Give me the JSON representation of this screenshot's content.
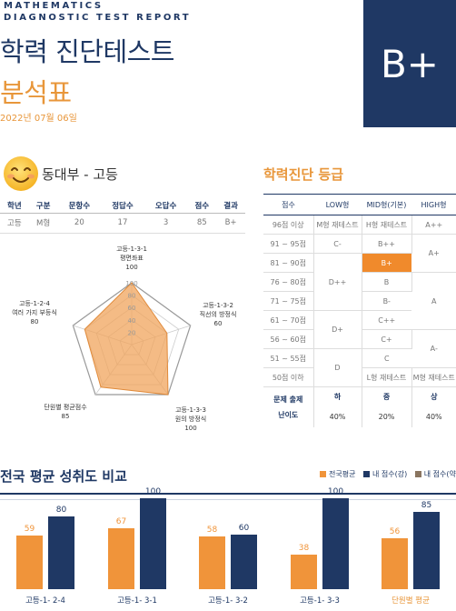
{
  "header": {
    "english_title_line1": "MATHEMATICS",
    "english_title_line2": "DIAGNOSTIC TEST REPORT",
    "title_line1": "학력 진단테스트",
    "title_line2": "분석표",
    "date": "2022년 07월 06일",
    "grade": "B+"
  },
  "student": {
    "emoji": "smiling-face",
    "name": "동대부 - 고등"
  },
  "info_table": {
    "headers": [
      "학년",
      "구분",
      "문항수",
      "정답수",
      "오답수",
      "점수",
      "결과"
    ],
    "row": [
      "고등",
      "M형",
      "20",
      "17",
      "3",
      "85",
      "B+"
    ]
  },
  "radar": {
    "axes": [
      {
        "name_line1": "고등-1-3-1",
        "name_line2": "평면좌표",
        "score": "100",
        "value": 100
      },
      {
        "name_line1": "고등-1-3-2",
        "name_line2": "직선의 방정식",
        "score": "60",
        "value": 60
      },
      {
        "name_line1": "고등-1-3-3",
        "name_line2": "원의 방정식",
        "score": "100",
        "value": 100
      },
      {
        "name_line1": "단원별 평균점수",
        "name_line2": "",
        "score": "85",
        "value": 85
      },
      {
        "name_line1": "고등-1-2-4",
        "name_line2": "여러 가지 부등식",
        "score": "80",
        "value": 80
      }
    ],
    "ticks": [
      "20",
      "40",
      "60",
      "80",
      "100"
    ]
  },
  "diagnosis": {
    "title": "학력진단 등급",
    "headers": [
      "점수",
      "LOW형",
      "MID형(기본)",
      "HIGH형"
    ],
    "rows": [
      {
        "score": "96점 이상",
        "low": "M형 재테스트",
        "mid": "H형 재테스트",
        "high": "A++"
      },
      {
        "score": "91 ~ 95점",
        "low": "C-",
        "mid": "B++",
        "high": "A+"
      },
      {
        "score": "81 ~ 90점",
        "mid": "B+"
      },
      {
        "score": "76 ~ 80점",
        "low": "D++",
        "mid": "B",
        "high": "A"
      },
      {
        "score": "71 ~ 75점",
        "mid": "B-"
      },
      {
        "score": "61 ~ 70점",
        "low": "D+",
        "mid": "C++"
      },
      {
        "score": "56 ~ 60점",
        "mid": "C+",
        "high": "A-"
      },
      {
        "score": "51 ~ 55점",
        "low": "D",
        "mid": "C"
      },
      {
        "score": "50점 이하",
        "mid": "L형 재테스트",
        "high": "M형 재테스트"
      }
    ],
    "footer_label_1": "문제 출제",
    "footer_label_2": "난이도",
    "levels": [
      "하",
      "중",
      "상"
    ],
    "ratios": [
      "40%",
      "20%",
      "40%"
    ]
  },
  "comparison": {
    "title": "전국 평균 성취도 비교",
    "legend": [
      "전국평균",
      "내 점수(강)",
      "내 점수(약)"
    ],
    "chart_data": {
      "type": "bar",
      "categories": [
        "고등-1- 2-4",
        "고등-1- 3-1",
        "고등-1- 3-2",
        "고등-1- 3-3",
        "단원별 평균"
      ],
      "series": [
        {
          "name": "전국평균",
          "values": [
            59,
            67,
            58,
            38,
            56
          ]
        },
        {
          "name": "내 점수(강)",
          "values": [
            80,
            100,
            60,
            100,
            85
          ]
        }
      ],
      "ylim": [
        0,
        100
      ]
    },
    "colors": {
      "national": "#f0943a",
      "mine": "#1f3864",
      "weak": "#8a7560"
    }
  }
}
